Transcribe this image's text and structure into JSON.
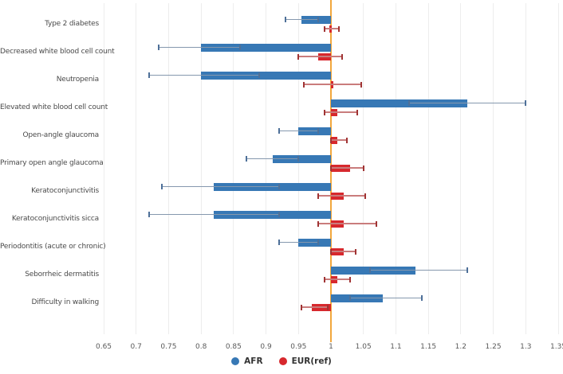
{
  "legend": {
    "items": [
      {
        "label": "AFR",
        "color": "#3778b5"
      },
      {
        "label": "EUR(ref)",
        "color": "#d7282d"
      }
    ]
  },
  "colors": {
    "afr_bar": "#3778b5",
    "eur_bar": "#d7282d",
    "afr_whisker_line": "#8598ae",
    "afr_whisker_cap": "#4e7099",
    "eur_whisker_line": "#c97c7c",
    "eur_whisker_cap": "#a03434",
    "reference_line": "#f2a73d",
    "gridline": "#ededed"
  },
  "chart_data": {
    "type": "bar",
    "orientation": "horizontal",
    "baseline": 1,
    "grid": true,
    "legend_position": "bottom",
    "xlim": [
      0.65,
      1.35
    ],
    "x_tick_values": [
      0.65,
      0.7,
      0.75,
      0.8,
      0.85,
      0.9,
      0.95,
      1,
      1.05,
      1.1,
      1.15,
      1.2,
      1.25,
      1.3,
      1.35
    ],
    "x_tick_labels": [
      "0.65",
      "0.7",
      "0.75",
      "0.8",
      "0.85",
      "0.9",
      "0.95",
      "1",
      "1.05",
      "1.1",
      "1.15",
      "1.2",
      "1.25",
      "1.3",
      "1.35"
    ],
    "reference_line_value": 1,
    "categories": [
      "Type 2 diabetes",
      "Decreased white blood cell count",
      "Neutropenia",
      "Elevated white blood cell count",
      "Open-angle glaucoma",
      "Primary open angle glaucoma",
      "Keratoconjunctivitis",
      "Keratoconjunctivitis sicca",
      "Periodontitis (acute or chronic)",
      "Seborrheic dermatitis",
      "Difficulty in walking"
    ],
    "series": [
      {
        "name": "AFR",
        "color": "#3778b5",
        "values": [
          0.955,
          0.8,
          0.8,
          1.21,
          0.95,
          0.91,
          0.82,
          0.82,
          0.95,
          1.13,
          1.08
        ],
        "ci_low": [
          0.93,
          0.735,
          0.72,
          1.12,
          0.92,
          0.87,
          0.74,
          0.72,
          0.92,
          1.06,
          1.03
        ],
        "ci_high": [
          0.98,
          0.86,
          0.89,
          1.3,
          0.98,
          0.95,
          0.92,
          0.92,
          0.98,
          1.21,
          1.14
        ]
      },
      {
        "name": "EUR(ref)",
        "color": "#d7282d",
        "values": [
          0.998,
          0.98,
          1.0,
          1.01,
          1.01,
          1.03,
          1.02,
          1.02,
          1.02,
          1.01,
          0.97
        ],
        "ci_low": [
          0.99,
          0.95,
          0.958,
          0.99,
          1.0,
          1.0,
          0.98,
          0.98,
          1.0,
          0.99,
          0.955
        ],
        "ci_high": [
          1.012,
          1.017,
          1.047,
          1.04,
          1.025,
          1.05,
          1.053,
          1.07,
          1.038,
          1.029,
          0.995
        ]
      }
    ]
  }
}
